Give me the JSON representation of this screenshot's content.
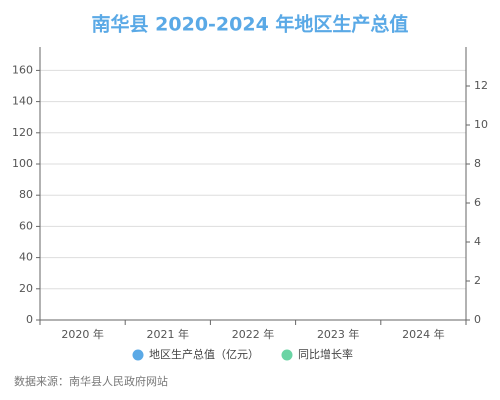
{
  "chart_data": {
    "type": "bar",
    "title": "南华县 2020-2024 年地区生产总值",
    "categories": [
      "2020 年",
      "2021 年",
      "2022 年",
      "2023 年",
      "2024 年"
    ],
    "series": [
      {
        "name": "地区生产总值（亿元）",
        "color": "#5aa9e6",
        "type": "bar",
        "values": [
          null,
          null,
          null,
          null,
          null
        ]
      },
      {
        "name": "同比增长率",
        "color": "#6ad4a4",
        "type": "line",
        "axis": "y2",
        "values": [
          null,
          null,
          null,
          null,
          null
        ]
      }
    ],
    "ylim": [
      0,
      175
    ],
    "yticks": [
      0,
      20,
      40,
      60,
      80,
      100,
      120,
      140,
      160
    ],
    "y2lim": [
      0,
      14
    ],
    "y2ticks": [
      0,
      2,
      4,
      6,
      8,
      10,
      12
    ],
    "grid": true,
    "legend": "bottom",
    "source": "数据来源：南华县人民政府网站"
  }
}
